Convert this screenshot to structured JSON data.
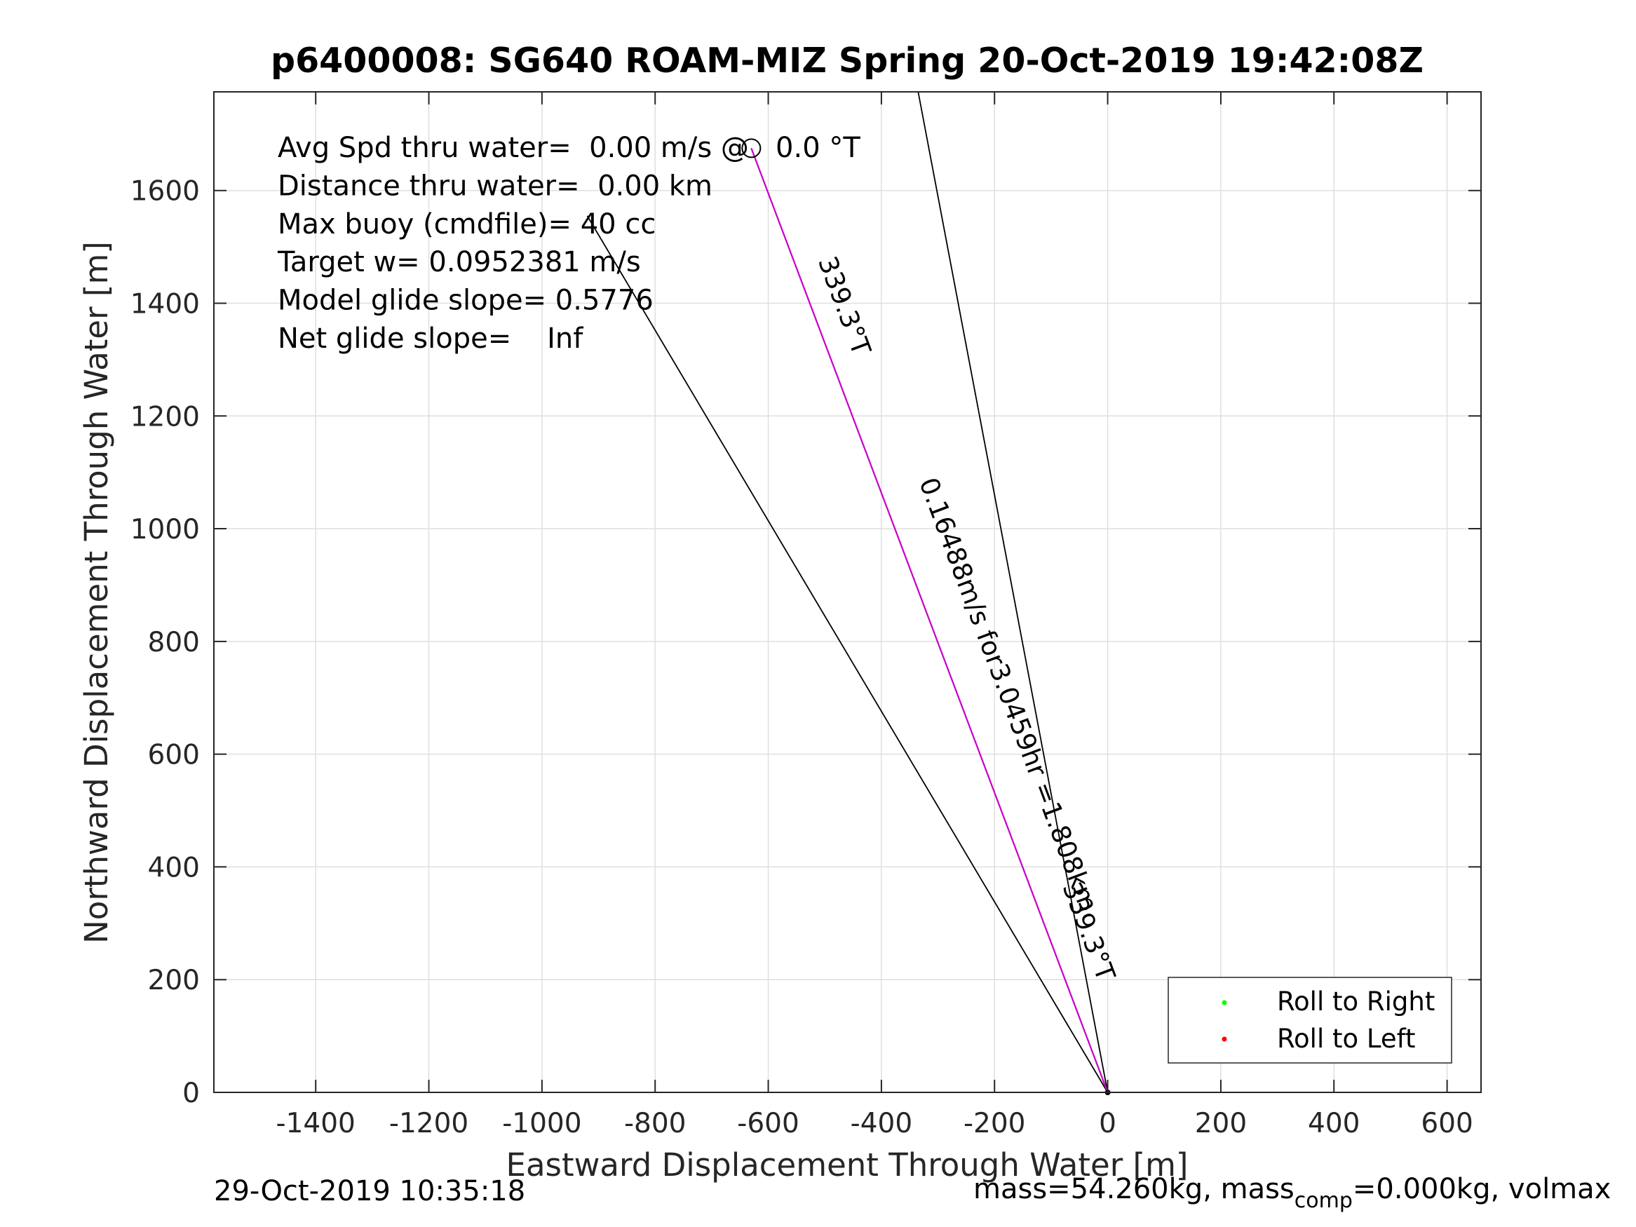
{
  "chart_data": {
    "type": "line",
    "title": "p6400008: SG640 ROAM-MIZ Spring 20-Oct-2019 19:42:08Z",
    "xlabel": "Eastward Displacement Through Water [m]",
    "ylabel": "Northward Displacement Through Water [m]",
    "xlim": [
      -1580,
      660
    ],
    "ylim": [
      0,
      1775
    ],
    "xticks": [
      -1400,
      -1200,
      -1000,
      -800,
      -600,
      -400,
      -200,
      0,
      200,
      400,
      600
    ],
    "xtick_labels": [
      "-1400",
      "-1200",
      "-1000",
      "-800",
      "-600",
      "-400",
      "-200",
      "0",
      "200",
      "400",
      "600"
    ],
    "yticks": [
      0,
      200,
      400,
      600,
      800,
      1000,
      1200,
      1400,
      1600
    ],
    "ytick_labels": [
      "0",
      "200",
      "400",
      "600",
      "800",
      "1000",
      "1200",
      "1400",
      "1600"
    ],
    "grid": true,
    "series": [
      {
        "color": "#000000",
        "x": [
          0,
          -335
        ],
        "y": [
          0,
          1775
        ]
      },
      {
        "color": "#000000",
        "x": [
          0,
          -920
        ],
        "y": [
          0,
          1555
        ]
      },
      {
        "color": "#000000",
        "x": [
          0,
          -630
        ],
        "y": [
          0,
          1675
        ]
      },
      {
        "color": "#cc00cc",
        "x": [
          0,
          -630
        ],
        "y": [
          0,
          1675
        ]
      }
    ],
    "markers": [
      {
        "shape": "circle",
        "x": -630,
        "y": 1675
      },
      {
        "shape": "dot",
        "x": 0,
        "y": 0
      }
    ],
    "annotations": [
      {
        "text": "339.3°T",
        "x": -480,
        "y": 1390,
        "angle": -69.4
      },
      {
        "text": "0.16488m/s for3.0459hr =1.808km",
        "x": -190,
        "y": 700,
        "angle": -69.4
      },
      {
        "text": "339.3°T",
        "x": -48,
        "y": 280,
        "angle": -69.4
      }
    ],
    "legend": {
      "position": "bottom-right",
      "entries": [
        {
          "label": "Roll to Right",
          "color": "#00ff00"
        },
        {
          "label": "Roll to Left",
          "color": "#ff0000"
        }
      ]
    }
  },
  "info_lines": [
    "Avg Spd thru water=  0.00 m/s @   0.0 °T",
    "Distance thru water=  0.00 km",
    "Max buoy (cmdfile)= 40 cc",
    "Target w= 0.0952381 m/s",
    "Model glide slope= 0.5776",
    "Net glide slope=    Inf"
  ],
  "footer": {
    "timestamp": "29-Oct-2019 10:35:18",
    "mass_prefix": "mass=54.260kg, mass",
    "mass_sub": "comp",
    "mass_suffix": "=0.000kg, volmax"
  }
}
